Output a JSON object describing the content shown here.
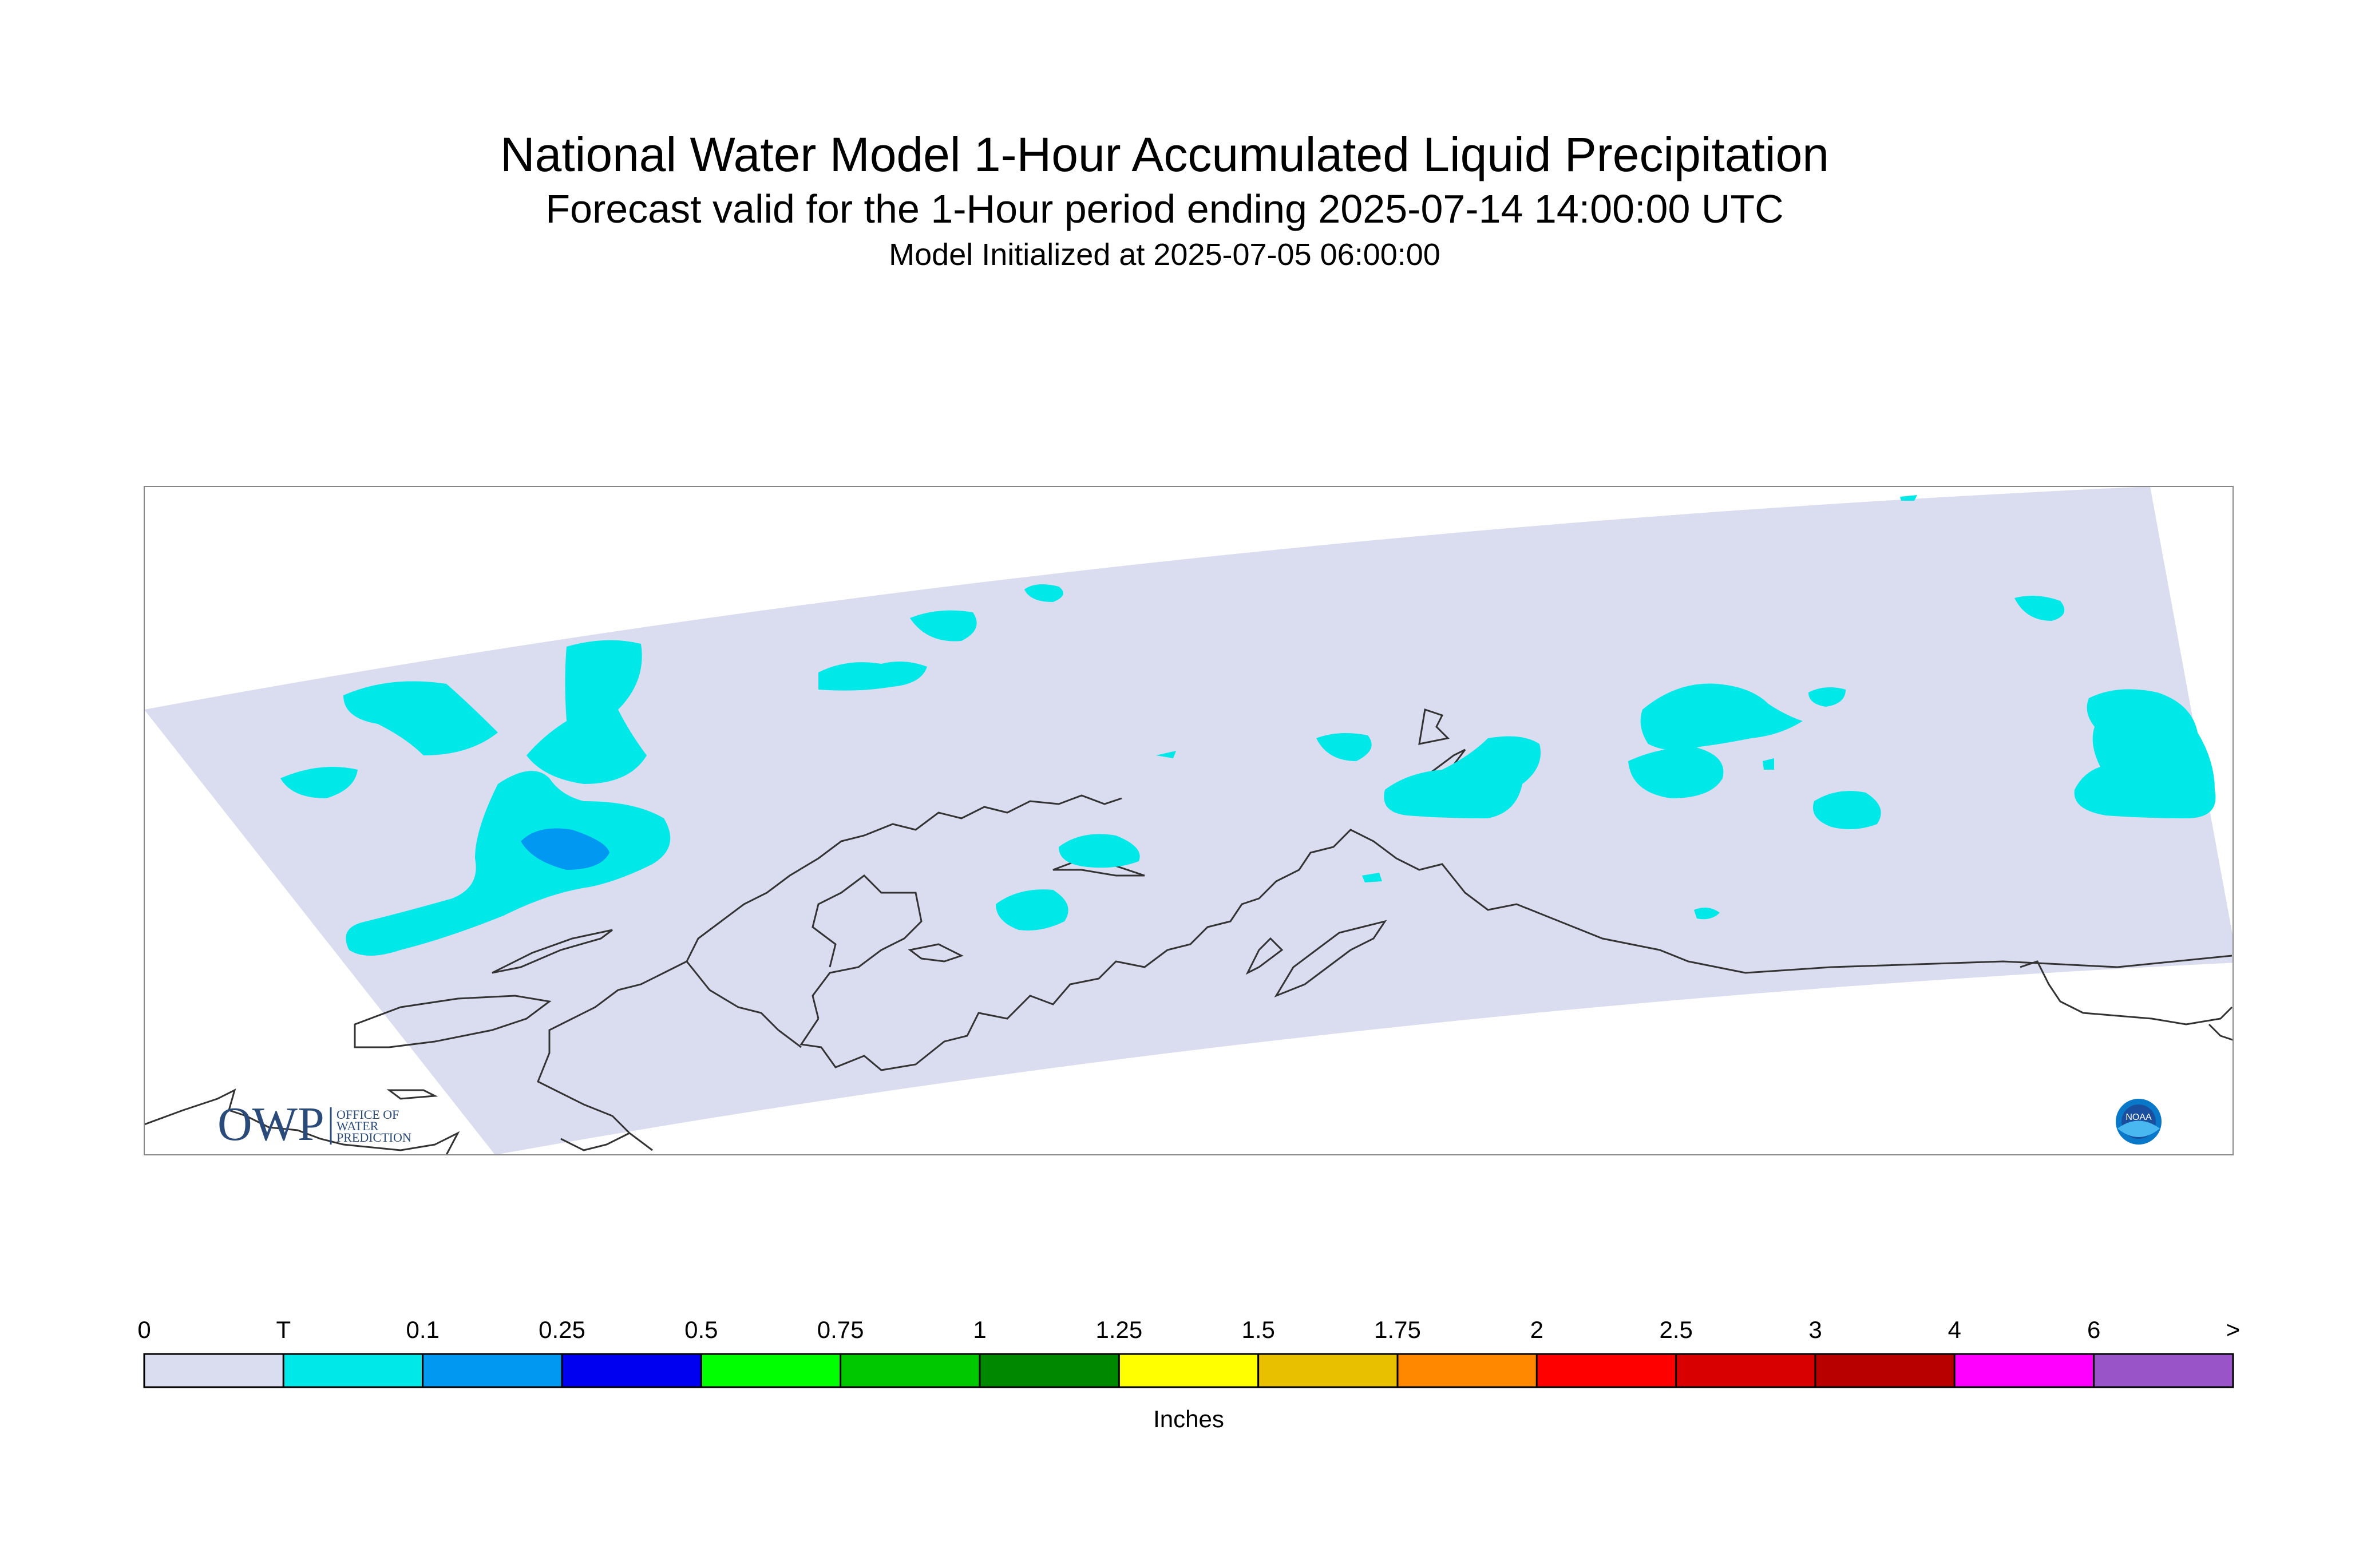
{
  "titles": {
    "main": "National Water Model 1-Hour Accumulated Liquid Precipitation",
    "forecast": "Forecast valid for the 1-Hour period ending 2025-07-14 14:00:00 UTC",
    "init": "Model Initialized at 2025-07-05 06:00:00"
  },
  "logos": {
    "owp_text": "OWP",
    "owp_sub": [
      "OFFICE OF",
      "WATER",
      "PREDICTION"
    ],
    "noaa_text": "NOAA"
  },
  "legend": {
    "unit": "Inches",
    "labels": [
      "0",
      "T",
      "0.1",
      "0.25",
      "0.5",
      "0.75",
      "1",
      "1.25",
      "1.5",
      "1.75",
      "2",
      "2.5",
      "3",
      "4",
      "6",
      ">"
    ],
    "colors": [
      "#dadcf0",
      "#00e8e8",
      "#0098f0",
      "#0000f0",
      "#00ff00",
      "#00c800",
      "#008800",
      "#ffff00",
      "#e8c000",
      "#ff8800",
      "#ff0000",
      "#d80000",
      "#b80000",
      "#ff00ff",
      "#9955c8"
    ]
  },
  "colors": {
    "domain_fill": "#dadcf0",
    "trace": "#00e8e8",
    "light_rain": "#0098f0",
    "coastline": "#333333"
  }
}
